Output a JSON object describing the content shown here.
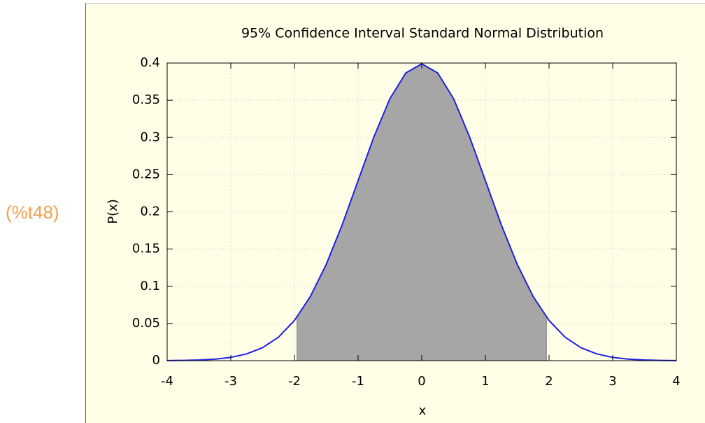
{
  "output_label": "(%t48)",
  "chart_data": {
    "type": "line",
    "title": "95% Confidence Interval Standard Normal Distribution",
    "xlabel": "x",
    "ylabel": "P(x)",
    "xlim": [
      -4,
      4
    ],
    "ylim": [
      0,
      0.4
    ],
    "xticks": [
      -4,
      -3,
      -2,
      -1,
      0,
      1,
      2,
      3,
      4
    ],
    "yticks": [
      0,
      0.05,
      0.1,
      0.15,
      0.2,
      0.25,
      0.3,
      0.35,
      0.4
    ],
    "grid": true,
    "series": [
      {
        "color": "#1f1fe6",
        "x": [
          -4,
          -3.75,
          -3.5,
          -3.25,
          -3,
          -2.75,
          -2.5,
          -2.25,
          -2,
          -1.75,
          -1.5,
          -1.25,
          -1,
          -0.75,
          -0.5,
          -0.25,
          0,
          0.25,
          0.5,
          0.75,
          1,
          1.25,
          1.5,
          1.75,
          2,
          2.25,
          2.5,
          2.75,
          3,
          3.25,
          3.5,
          3.75,
          4
        ],
        "values": [
          0.0001,
          0.0004,
          0.0009,
          0.002,
          0.0044,
          0.0091,
          0.0175,
          0.0317,
          0.054,
          0.0863,
          0.1295,
          0.1826,
          0.242,
          0.3011,
          0.3521,
          0.3867,
          0.3989,
          0.3867,
          0.3521,
          0.3011,
          0.242,
          0.1826,
          0.1295,
          0.0863,
          0.054,
          0.0317,
          0.0175,
          0.0091,
          0.0044,
          0.002,
          0.0009,
          0.0004,
          0.0001
        ]
      }
    ],
    "fill": {
      "color": "#a6a6a6",
      "x": [
        -1.96,
        -1.75,
        -1.5,
        -1.25,
        -1,
        -0.75,
        -0.5,
        -0.25,
        0,
        0.25,
        0.5,
        0.75,
        1,
        1.25,
        1.5,
        1.75,
        1.96
      ],
      "values": [
        0.0584,
        0.0863,
        0.1295,
        0.1826,
        0.242,
        0.3011,
        0.3521,
        0.3867,
        0.3989,
        0.3867,
        0.3521,
        0.3011,
        0.242,
        0.1826,
        0.1295,
        0.0863,
        0.0584
      ]
    }
  }
}
